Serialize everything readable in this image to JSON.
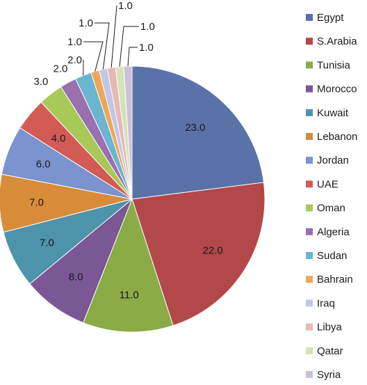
{
  "chart_data": {
    "type": "pie",
    "title": "",
    "legend_position": "right",
    "categories": [
      "Egypt",
      "S.Arabia",
      "Tunisia",
      "Morocco",
      "Kuwait",
      "Lebanon",
      "Jordan",
      "UAE",
      "Oman",
      "Algeria",
      "Sudan",
      "Bahrain",
      "Iraq",
      "Libya",
      "Qatar",
      "Syria"
    ],
    "values": [
      23,
      22,
      11,
      8,
      7,
      7,
      6,
      4,
      3,
      2,
      2,
      1,
      1,
      1,
      1,
      1
    ],
    "data_labels": [
      "23.0",
      "22.0",
      "11.0",
      "8.0",
      "7.0",
      "7.0",
      "6.0",
      "4.0",
      "3.0",
      "2.0",
      "2.0",
      "1.0",
      "1.0",
      "1.0",
      "1.0",
      "1.0"
    ],
    "colors": [
      "#5a72a8",
      "#b3484a",
      "#8aab46",
      "#7b5796",
      "#4d93ab",
      "#d88c3a",
      "#7b93cf",
      "#d35b55",
      "#a6c957",
      "#9a70ae",
      "#6bb5d0",
      "#eea75a",
      "#bfc8e4",
      "#e8b8b6",
      "#d4e3b8",
      "#cdbfd8"
    ]
  }
}
